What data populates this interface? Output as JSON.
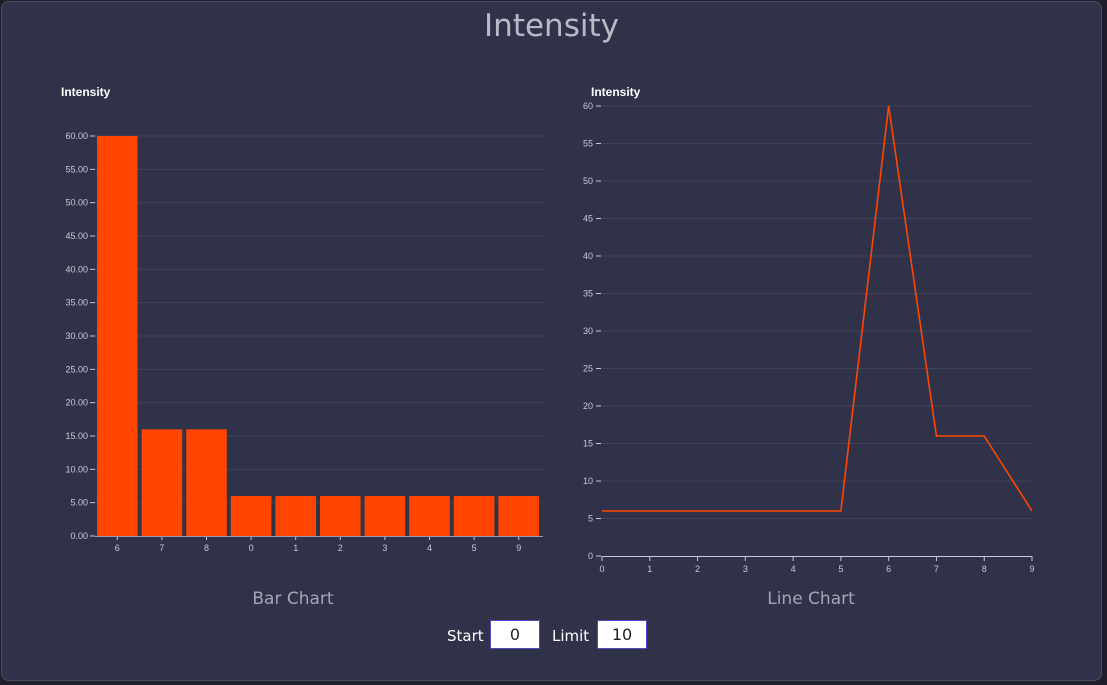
{
  "page": {
    "title": "Intensity"
  },
  "bar_chart": {
    "caption": "Bar Chart"
  },
  "line_chart": {
    "caption": "Line Chart"
  },
  "controls": {
    "start_label": "Start",
    "start_value": "0",
    "limit_label": "Limit",
    "limit_value": "10"
  },
  "colors": {
    "series": "#ff4500",
    "panel": "#30324a",
    "grid": "#414359",
    "tick_text": "#c9cad3"
  },
  "chart_data": [
    {
      "type": "bar",
      "title": "Intensity",
      "categories": [
        "6",
        "7",
        "8",
        "0",
        "1",
        "2",
        "3",
        "4",
        "5",
        "9"
      ],
      "values": [
        60,
        16,
        16,
        6,
        6,
        6,
        6,
        6,
        6,
        6
      ],
      "ylim": [
        0,
        60
      ],
      "yticks": [
        "0.00",
        "5.00",
        "10.00",
        "15.00",
        "20.00",
        "25.00",
        "30.00",
        "35.00",
        "40.00",
        "45.00",
        "50.00",
        "55.00",
        "60.00"
      ],
      "grid": true
    },
    {
      "type": "line",
      "title": "Intensity",
      "x": [
        0,
        1,
        2,
        3,
        4,
        5,
        6,
        7,
        8,
        9
      ],
      "values": [
        6,
        6,
        6,
        6,
        6,
        6,
        60,
        16,
        16,
        6
      ],
      "ylim": [
        0,
        60
      ],
      "xlim": [
        0,
        9
      ],
      "yticks": [
        "0",
        "5",
        "10",
        "15",
        "20",
        "25",
        "30",
        "35",
        "40",
        "45",
        "50",
        "55",
        "60"
      ],
      "xticks": [
        "0",
        "1",
        "2",
        "3",
        "4",
        "5",
        "6",
        "7",
        "8",
        "9"
      ],
      "grid": true
    }
  ]
}
